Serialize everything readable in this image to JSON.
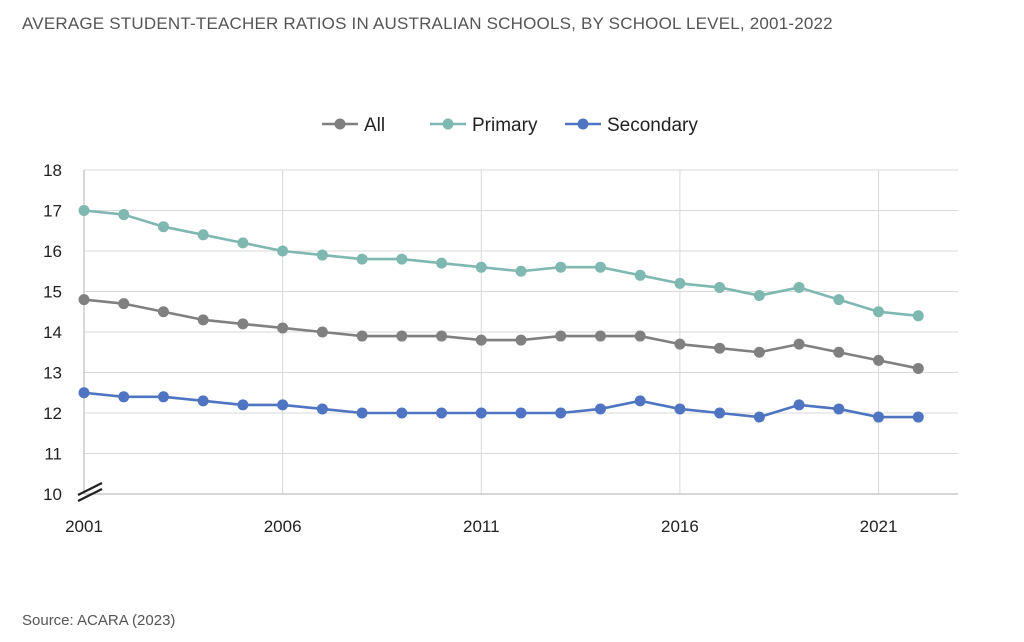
{
  "title": "AVERAGE STUDENT-TEACHER RATIOS IN AUSTRALIAN SCHOOLS, BY SCHOOL LEVEL, 2001-2022",
  "source": "Source: ACARA (2023)",
  "chart_data": {
    "type": "line",
    "title": "AVERAGE STUDENT-TEACHER RATIOS IN AUSTRALIAN SCHOOLS, BY SCHOOL LEVEL, 2001-2022",
    "xlabel": "",
    "ylabel": "",
    "x": [
      2001,
      2002,
      2003,
      2004,
      2005,
      2006,
      2007,
      2008,
      2009,
      2010,
      2011,
      2012,
      2013,
      2014,
      2015,
      2016,
      2017,
      2018,
      2019,
      2020,
      2021,
      2022
    ],
    "x_ticks": [
      2001,
      2006,
      2011,
      2016,
      2021
    ],
    "y_ticks": [
      10,
      11,
      12,
      13,
      14,
      15,
      16,
      17,
      18
    ],
    "ylim": [
      10,
      18
    ],
    "xlim": [
      2001,
      2023
    ],
    "axis_break": true,
    "grid": true,
    "legend_position": "top",
    "series": [
      {
        "name": "All",
        "color": "#808080",
        "values": [
          14.8,
          14.7,
          14.5,
          14.3,
          14.2,
          14.1,
          14.0,
          13.9,
          13.9,
          13.9,
          13.8,
          13.8,
          13.9,
          13.9,
          13.9,
          13.7,
          13.6,
          13.5,
          13.7,
          13.5,
          13.3,
          13.1
        ]
      },
      {
        "name": "Primary",
        "color": "#7fb8b0",
        "values": [
          17.0,
          16.9,
          16.6,
          16.4,
          16.2,
          16.0,
          15.9,
          15.8,
          15.8,
          15.7,
          15.6,
          15.5,
          15.6,
          15.6,
          15.4,
          15.2,
          15.1,
          14.9,
          15.1,
          14.8,
          14.5,
          14.4
        ]
      },
      {
        "name": "Secondary",
        "color": "#4e74c2",
        "values": [
          12.5,
          12.4,
          12.4,
          12.3,
          12.2,
          12.2,
          12.1,
          12.0,
          12.0,
          12.0,
          12.0,
          12.0,
          12.0,
          12.1,
          12.3,
          12.1,
          12.0,
          11.9,
          12.2,
          12.1,
          11.9,
          11.9
        ]
      }
    ]
  }
}
